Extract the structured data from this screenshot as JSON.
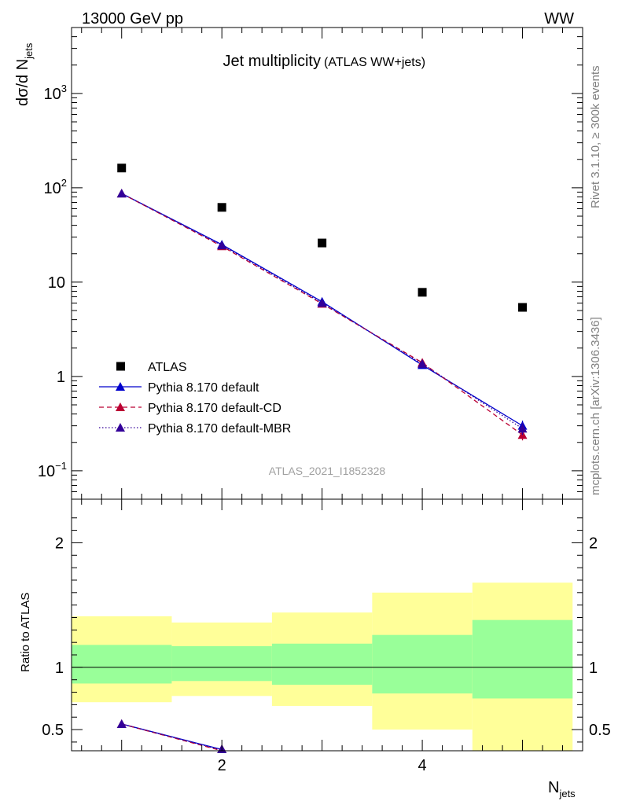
{
  "header": {
    "left_label": "13000 GeV pp",
    "right_label": "WW"
  },
  "side_labels": {
    "rivet": "Rivet 3.1.10, ≥ 300k events",
    "mcplots": "mcplots.cern.ch [arXiv:1306.3436]"
  },
  "chart_data": [
    {
      "type": "scatter",
      "title": "Jet multiplicity",
      "subtitle": "(ATLAS WW+jets)",
      "analysis_id": "ATLAS_2021_I1852328",
      "ylabel_main": "dσ/d N",
      "ylabel_sub": "jets",
      "y_scale": "log",
      "xlim": [
        0.5,
        5.6
      ],
      "ylim": [
        0.05,
        5000
      ],
      "y_ticks": [
        {
          "value": 0.1,
          "base": "10",
          "exp": "−1"
        },
        {
          "value": 1,
          "base": "1",
          "exp": ""
        },
        {
          "value": 10,
          "base": "10",
          "exp": ""
        },
        {
          "value": 100,
          "base": "10",
          "exp": "2"
        },
        {
          "value": 1000,
          "base": "10",
          "exp": "3"
        }
      ],
      "legend_position": "bottom-left",
      "legend": [
        {
          "label": "ATLAS",
          "series": "atlas"
        },
        {
          "label": "Pythia 8.170 default",
          "series": "default"
        },
        {
          "label": "Pythia 8.170 default-CD",
          "series": "cd"
        },
        {
          "label": "Pythia 8.170 default-MBR",
          "series": "mbr"
        }
      ],
      "series": [
        {
          "id": "atlas",
          "name": "ATLAS",
          "color": "#000000",
          "marker": "square",
          "x": [
            1,
            2,
            3,
            4,
            5
          ],
          "y": [
            162,
            62,
            26,
            7.8,
            5.4
          ]
        },
        {
          "id": "default",
          "name": "Pythia 8.170 default",
          "color": "#0000cc",
          "marker": "triangle",
          "line": "solid",
          "x": [
            1,
            2,
            3,
            4,
            5
          ],
          "y": [
            87,
            25,
            6.2,
            1.32,
            0.3
          ],
          "yerr": [
            0,
            0,
            0,
            0.05,
            0.04
          ]
        },
        {
          "id": "cd",
          "name": "Pythia 8.170 default-CD",
          "color": "#bb0033",
          "marker": "triangle",
          "line": "dashed",
          "x": [
            1,
            2,
            3,
            4,
            5
          ],
          "y": [
            87,
            24,
            5.9,
            1.4,
            0.24
          ],
          "yerr": [
            0,
            0,
            0,
            0.05,
            0.03
          ]
        },
        {
          "id": "mbr",
          "name": "Pythia 8.170 default-MBR",
          "color": "#330099",
          "marker": "triangle",
          "line": "dotted",
          "x": [
            1,
            2,
            3,
            4,
            5
          ],
          "y": [
            87,
            24.5,
            6.0,
            1.36,
            0.28
          ],
          "yerr": [
            0,
            0,
            0,
            0.05,
            0.04
          ]
        }
      ]
    },
    {
      "type": "line",
      "ylabel": "Ratio to ATLAS",
      "xlabel_main": "N",
      "xlabel_sub": "jets",
      "xlim": [
        0.5,
        5.6
      ],
      "ylim": [
        0.33,
        2.35
      ],
      "x_ticks": [
        2,
        4
      ],
      "y_ticks": [
        0.5,
        1,
        2
      ],
      "reference_line": 1,
      "bands": [
        {
          "x0": 0.5,
          "x1": 1.5,
          "inner": [
            0.87,
            1.18
          ],
          "outer": [
            0.72,
            1.41
          ]
        },
        {
          "x0": 1.5,
          "x1": 2.5,
          "inner": [
            0.89,
            1.17
          ],
          "outer": [
            0.77,
            1.36
          ]
        },
        {
          "x0": 2.5,
          "x1": 3.5,
          "inner": [
            0.86,
            1.19
          ],
          "outer": [
            0.69,
            1.44
          ]
        },
        {
          "x0": 3.5,
          "x1": 4.5,
          "inner": [
            0.79,
            1.26
          ],
          "outer": [
            0.5,
            1.6
          ]
        },
        {
          "x0": 4.5,
          "x1": 5.5,
          "inner": [
            0.75,
            1.38
          ],
          "outer": [
            0.3,
            1.68
          ]
        }
      ],
      "band_colors": {
        "inner": "#99ff99",
        "outer": "#ffff99"
      },
      "series": [
        {
          "id": "default",
          "color": "#0000cc",
          "line": "solid",
          "x": [
            1,
            2
          ],
          "y": [
            0.545,
            0.34
          ]
        },
        {
          "id": "cd",
          "color": "#bb0033",
          "line": "dashed",
          "x": [
            1,
            2
          ],
          "y": [
            0.545,
            0.33
          ]
        },
        {
          "id": "mbr",
          "color": "#330099",
          "line": "dotted",
          "x": [
            1,
            2
          ],
          "y": [
            0.545,
            0.335
          ]
        }
      ]
    }
  ]
}
